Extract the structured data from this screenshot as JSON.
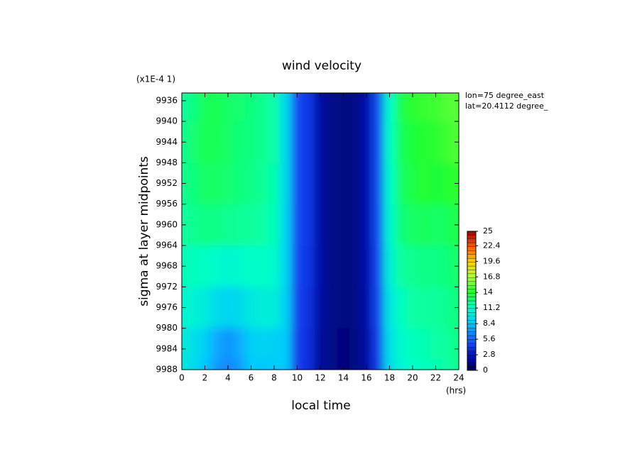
{
  "chart_data": {
    "type": "contour",
    "title": "wind velocity",
    "scale_note": "(x1E-4 1)",
    "xlabel": "local time",
    "xunit": "(hrs)",
    "ylabel": "sigma at layer midpoints",
    "annotations": [
      "lon=75 degree_east",
      "lat=20.4112 degree_"
    ],
    "x": [
      0,
      1,
      2,
      3,
      4,
      5,
      6,
      7,
      8,
      9,
      10,
      11,
      12,
      13,
      14,
      15,
      16,
      17,
      18,
      19,
      20,
      21,
      22,
      23,
      24
    ],
    "y": [
      9936,
      9944,
      9952,
      9960,
      9968,
      9976,
      9984,
      9988
    ],
    "z": [
      [
        12.0,
        12.5,
        13.2,
        13.4,
        13.0,
        12.8,
        12.6,
        12.2,
        11.8,
        9.2,
        4.8,
        4.2,
        2.0,
        1.4,
        1.2,
        1.3,
        2.2,
        5.0,
        11.0,
        13.5,
        14.2,
        14.5,
        14.6,
        15.0,
        15.2
      ],
      [
        12.2,
        12.8,
        13.4,
        13.3,
        13.0,
        12.7,
        12.5,
        12.2,
        11.8,
        9.2,
        4.8,
        4.2,
        2.0,
        1.4,
        1.2,
        1.3,
        2.2,
        5.0,
        11.2,
        13.2,
        13.8,
        14.0,
        14.2,
        14.6,
        15.0
      ],
      [
        12.2,
        12.6,
        13.0,
        13.0,
        12.8,
        12.6,
        12.4,
        12.1,
        11.7,
        9.2,
        4.8,
        4.2,
        2.0,
        1.4,
        1.2,
        1.3,
        2.2,
        5.0,
        11.0,
        13.0,
        13.6,
        14.0,
        13.8,
        14.0,
        14.4
      ],
      [
        12.0,
        12.2,
        12.4,
        12.4,
        12.2,
        12.1,
        12.0,
        11.8,
        11.5,
        9.1,
        4.8,
        4.2,
        2.0,
        1.4,
        1.2,
        1.3,
        2.2,
        5.0,
        10.8,
        12.6,
        13.0,
        13.2,
        13.0,
        13.2,
        13.6
      ],
      [
        11.5,
        11.4,
        11.3,
        11.0,
        10.8,
        11.0,
        11.2,
        11.2,
        11.0,
        9.0,
        4.7,
        4.1,
        2.0,
        1.4,
        1.2,
        1.3,
        2.2,
        4.9,
        10.5,
        12.0,
        12.2,
        12.4,
        12.4,
        12.6,
        13.0
      ],
      [
        10.8,
        10.6,
        10.2,
        9.4,
        9.0,
        9.3,
        10.0,
        10.4,
        10.3,
        8.9,
        4.6,
        4.0,
        1.9,
        1.4,
        1.2,
        1.3,
        2.1,
        4.8,
        10.0,
        11.4,
        11.8,
        12.0,
        12.0,
        12.2,
        12.6
      ],
      [
        10.2,
        9.6,
        8.8,
        7.6,
        7.0,
        7.6,
        8.8,
        9.0,
        8.8,
        8.6,
        4.5,
        3.9,
        1.8,
        1.3,
        1.1,
        1.2,
        2.0,
        4.6,
        9.6,
        11.0,
        11.4,
        11.6,
        11.8,
        12.0,
        12.4
      ],
      [
        10.0,
        9.4,
        8.4,
        7.2,
        6.6,
        7.2,
        8.6,
        8.4,
        8.6,
        8.5,
        4.4,
        3.8,
        1.8,
        1.3,
        1.1,
        1.2,
        2.0,
        4.5,
        9.4,
        10.8,
        11.2,
        11.4,
        11.6,
        11.8,
        12.2
      ]
    ],
    "xlim": [
      0,
      24
    ],
    "xticks": [
      0,
      2,
      4,
      6,
      8,
      10,
      12,
      14,
      16,
      18,
      20,
      22,
      24
    ],
    "ylim": [
      9934.5,
      9988
    ],
    "y_inverted": true,
    "yticks": [
      9936,
      9940,
      9944,
      9948,
      9952,
      9956,
      9960,
      9964,
      9968,
      9972,
      9976,
      9980,
      9984,
      9988
    ],
    "colorbar_ticks": [
      0,
      2.8,
      5.6,
      8.4,
      11.2,
      14,
      16.8,
      19.6,
      22.4,
      25
    ],
    "colorscale": [
      "#00004a",
      "#0010c8",
      "#2060ff",
      "#00c8ff",
      "#00ffc8",
      "#20ff30",
      "#a8ff40",
      "#ffd000",
      "#ff5000",
      "#a00000"
    ]
  }
}
